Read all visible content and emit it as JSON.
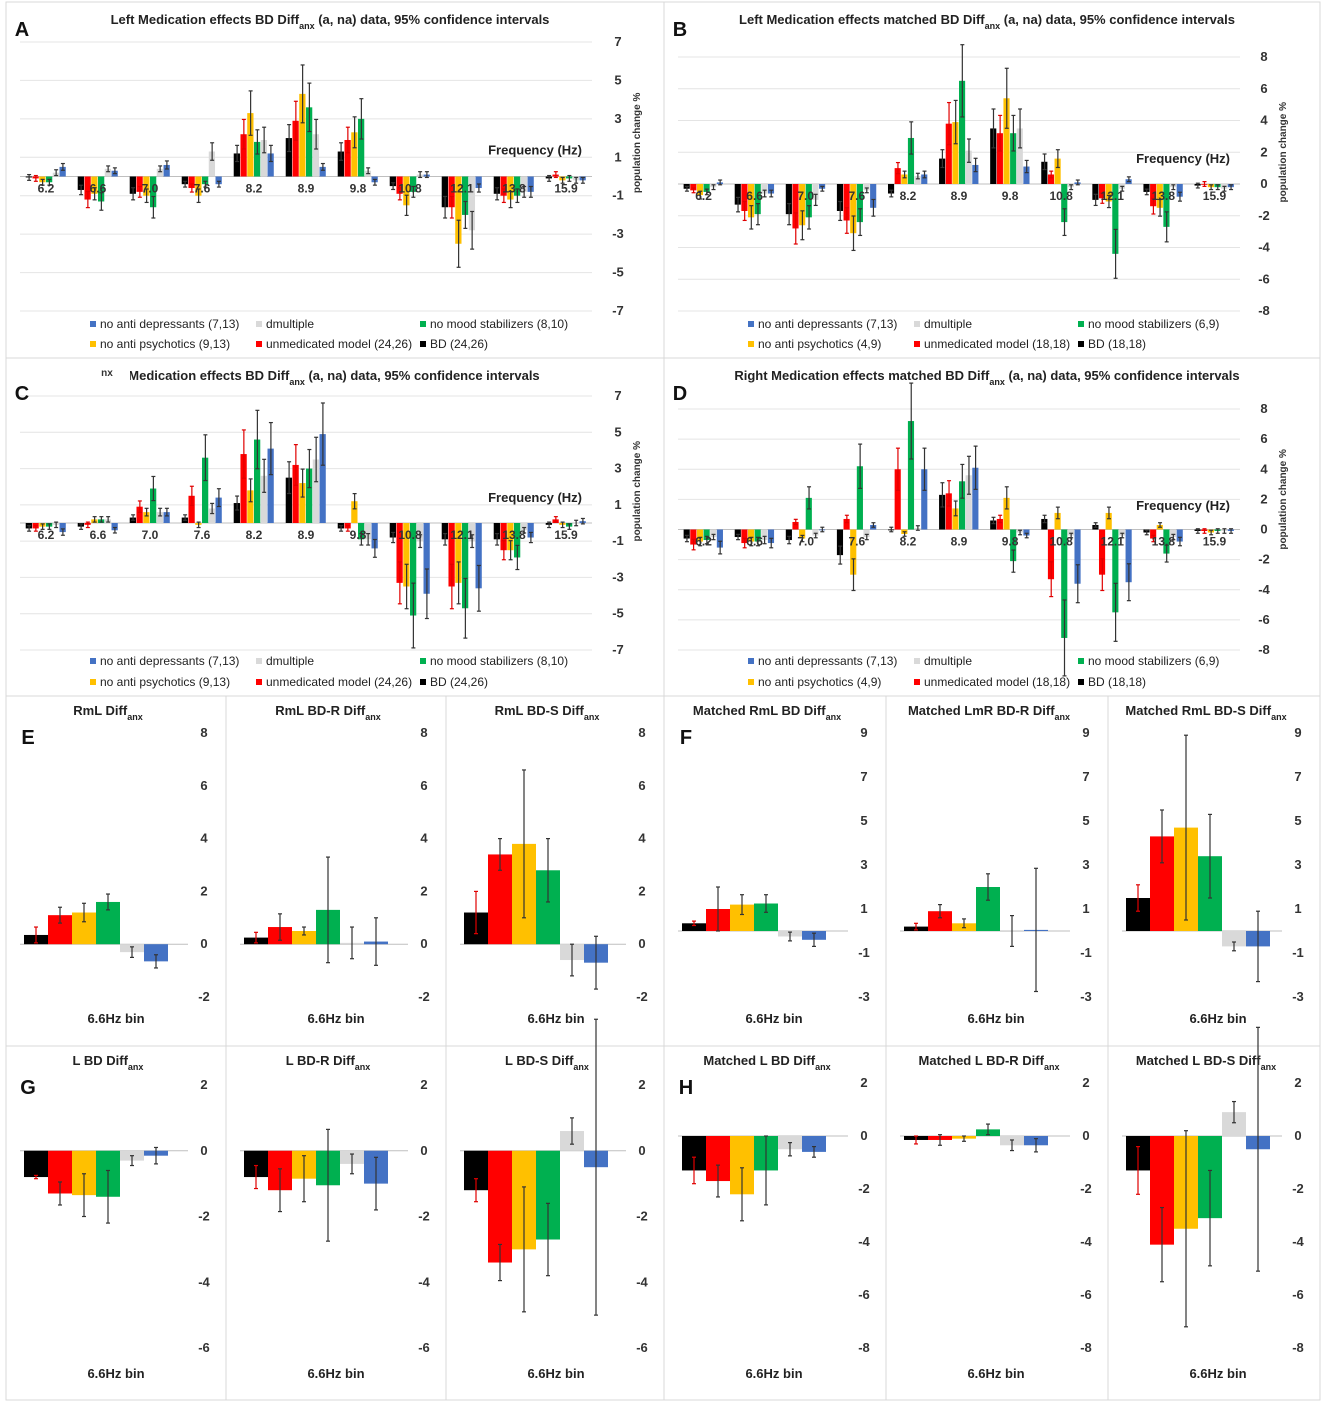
{
  "colors": {
    "BD": "#000000",
    "unmedicated": "#ff0000",
    "no_antipsychotics": "#ffc000",
    "no_mood_stabilizers": "#00b050",
    "dmultiple": "#d9d9d9",
    "no_antidepressants": "#4472c4"
  },
  "chart_data": [
    {
      "panel": "A",
      "type": "bar",
      "title": "Left Medication effects BD Diff",
      "title_sub": "anx",
      "title_rest": " (a, na) data, 95% confidence intervals",
      "xlabel": "Frequency (Hz)",
      "ylabel": "population change %",
      "ylim": [
        -7,
        7
      ],
      "yticks": [
        7,
        5,
        3,
        1,
        -1,
        -3,
        -5,
        -7
      ],
      "categories": [
        "6.2",
        "6.6",
        "7.0",
        "7.6",
        "8.2",
        "8.9",
        "9.8",
        "10.8",
        "12.1",
        "13.8",
        "15.9"
      ],
      "series": [
        {
          "name": "BD (24,26)",
          "color": "#000000",
          "values": [
            -0.05,
            -0.7,
            -0.9,
            -0.4,
            1.2,
            2.0,
            1.3,
            -0.5,
            -1.6,
            -0.9,
            -0.1
          ]
        },
        {
          "name": "unmedicated model (24,26)",
          "color": "#ff0000",
          "values": [
            -0.1,
            -1.2,
            -0.8,
            -0.6,
            2.2,
            2.9,
            1.9,
            -0.9,
            -1.6,
            -1.0,
            0.1
          ]
        },
        {
          "name": "no anti psychotics (9,13)",
          "color": "#ffc000",
          "values": [
            -0.3,
            -0.9,
            -1.0,
            -1.0,
            3.3,
            4.3,
            2.3,
            -1.5,
            -3.5,
            -1.2,
            -0.2
          ]
        },
        {
          "name": "no mood stabilizers (8,10)",
          "color": "#00b050",
          "values": [
            -0.3,
            -1.3,
            -1.6,
            -0.4,
            1.8,
            3.6,
            3.0,
            -0.8,
            -2.0,
            -1.0,
            -0.1
          ]
        },
        {
          "name": "dmultiple",
          "color": "#d9d9d9",
          "values": [
            0.2,
            0.4,
            0.4,
            1.3,
            1.9,
            2.2,
            0.3,
            0.1,
            -2.8,
            -0.8,
            -0.2
          ]
        },
        {
          "name": "no anti depressants (7,13)",
          "color": "#4472c4",
          "values": [
            0.5,
            0.3,
            0.6,
            -0.4,
            1.2,
            0.5,
            -0.3,
            0.1,
            -0.6,
            -0.8,
            -0.2
          ]
        }
      ],
      "legend": [
        "no anti depressants (7,13)",
        "dmultiple",
        "no mood stabilizers (8,10)",
        "no anti psychotics (9,13)",
        "unmedicated model (24,26)",
        "BD (24,26)"
      ]
    },
    {
      "panel": "B",
      "type": "bar",
      "title": "Left Medication effects matched BD Diff",
      "title_sub": "anx",
      "title_rest": " (a, na) data, 95% confidence intervals",
      "xlabel": "Frequency (Hz)",
      "ylabel": "population change %",
      "ylim": [
        -8,
        8
      ],
      "yticks": [
        8,
        6,
        4,
        2,
        0,
        -2,
        -4,
        -6,
        -8
      ],
      "categories": [
        "6.2",
        "6.6",
        "7.0",
        "7.6",
        "8.2",
        "8.9",
        "9.8",
        "10.8",
        "12.1",
        "13.8",
        "15.9"
      ],
      "series": [
        {
          "name": "BD (18,18)",
          "color": "#000000",
          "values": [
            -0.3,
            -1.3,
            -1.9,
            -1.7,
            -0.6,
            1.6,
            3.5,
            1.4,
            -1.0,
            -0.5,
            -0.1
          ]
        },
        {
          "name": "unmedicated model (18,18)",
          "color": "#ff0000",
          "values": [
            -0.4,
            -1.7,
            -2.8,
            -2.3,
            1.0,
            3.8,
            3.2,
            0.6,
            -0.9,
            -1.4,
            0.0
          ]
        },
        {
          "name": "no anti psychotics (4,9)",
          "color": "#ffc000",
          "values": [
            -0.7,
            -2.1,
            -2.6,
            -3.1,
            0.6,
            3.9,
            5.4,
            1.6,
            -1.1,
            -1.5,
            -0.2
          ]
        },
        {
          "name": "no mood stabilizers (6,9)",
          "color": "#00b050",
          "values": [
            -0.5,
            -1.9,
            -2.1,
            -2.4,
            2.9,
            6.5,
            3.2,
            -2.4,
            -4.4,
            -2.7,
            -0.2
          ]
        },
        {
          "name": "dmultiple",
          "color": "#d9d9d9",
          "values": [
            -0.2,
            -0.6,
            -1.0,
            -0.4,
            0.5,
            2.1,
            3.5,
            -0.2,
            -0.3,
            -0.2,
            -0.3
          ]
        },
        {
          "name": "no anti depressants (7,13)",
          "color": "#4472c4",
          "values": [
            0.1,
            -0.6,
            -0.3,
            -1.5,
            0.6,
            1.2,
            1.1,
            0.1,
            0.3,
            -0.8,
            -0.2
          ]
        }
      ],
      "legend": [
        "no anti depressants (7,13)",
        "dmultiple",
        "no mood stabilizers (6,9)",
        "no anti psychotics (4,9)",
        "unmedicated model (18,18)",
        "BD (18,18)"
      ]
    },
    {
      "panel": "C",
      "type": "bar",
      "title": "t Medication effects BD Diff",
      "title_sub": "anx",
      "title_rest": " (a, na) data, 95% confidence intervals",
      "title_overlay": "nx",
      "xlabel": "Frequency (Hz)",
      "ylabel": "population change %",
      "ylim": [
        -7,
        7
      ],
      "yticks": [
        7,
        5,
        3,
        1,
        -1,
        -3,
        -5,
        -7
      ],
      "categories": [
        "6.2",
        "6.6",
        "7.0",
        "7.6",
        "8.2",
        "8.9",
        "9.8",
        "10.8",
        "12.1",
        "13.8",
        "15.9"
      ],
      "series": [
        {
          "name": "BD (24,26)",
          "color": "#000000",
          "values": [
            -0.3,
            -0.2,
            0.3,
            0.3,
            1.1,
            2.5,
            -0.3,
            -0.8,
            -0.9,
            -0.9,
            -0.1
          ]
        },
        {
          "name": "unmedicated model (24,26)",
          "color": "#ff0000",
          "values": [
            -0.3,
            -0.1,
            0.9,
            1.5,
            3.8,
            3.2,
            -0.3,
            -3.3,
            -3.5,
            -1.5,
            0.2
          ]
        },
        {
          "name": "no anti psychotics (9,13)",
          "color": "#ffc000",
          "values": [
            -0.2,
            0.2,
            0.6,
            -0.1,
            1.8,
            2.2,
            1.2,
            -3.5,
            -3.3,
            -1.5,
            -0.1
          ]
        },
        {
          "name": "no mood stabilizers (8,10)",
          "color": "#00b050",
          "values": [
            -0.2,
            0.2,
            1.9,
            3.6,
            4.6,
            3.0,
            -0.9,
            -5.1,
            -4.7,
            -1.9,
            -0.2
          ]
        },
        {
          "name": "dmultiple",
          "color": "#d9d9d9",
          "values": [
            -0.1,
            0.2,
            0.6,
            0.8,
            2.6,
            3.5,
            -0.9,
            -1.0,
            -1.0,
            -0.4,
            0.0
          ]
        },
        {
          "name": "no anti depressants (7,13)",
          "color": "#4472c4",
          "values": [
            -0.5,
            -0.4,
            0.6,
            1.4,
            4.1,
            4.9,
            -1.4,
            -3.9,
            -3.6,
            -0.8,
            0.1
          ]
        }
      ],
      "legend": [
        "no anti depressants (7,13)",
        "dmultiple",
        "no mood stabilizers (8,10)",
        "no anti psychotics (9,13)",
        "unmedicated model (24,26)",
        "BD (24,26)"
      ]
    },
    {
      "panel": "D",
      "type": "bar",
      "title": "Right Medication effects matched BD Diff",
      "title_sub": "anx",
      "title_rest": " (a, na) data, 95% confidence intervals",
      "xlabel": "Frequency (Hz)",
      "ylabel": "population change %",
      "ylim": [
        -8,
        8
      ],
      "yticks": [
        8,
        6,
        4,
        2,
        0,
        -2,
        -4,
        -6,
        -8
      ],
      "categories": [
        "6.2",
        "6.6",
        "7.0",
        "7.6",
        "8.2",
        "8.9",
        "9.8",
        "10.8",
        "12.1",
        "13.8",
        "15.9"
      ],
      "series": [
        {
          "name": "BD (18,18)",
          "color": "#000000",
          "values": [
            -0.6,
            -0.5,
            -0.7,
            -1.7,
            0.0,
            2.3,
            0.6,
            0.7,
            0.3,
            -0.2,
            -0.1
          ]
        },
        {
          "name": "unmedicated model (18,18)",
          "color": "#ff0000",
          "values": [
            -1.0,
            -0.9,
            0.5,
            0.7,
            4.0,
            2.4,
            0.7,
            -3.3,
            -3.0,
            -0.6,
            -0.1
          ]
        },
        {
          "name": "no anti psychotics (4,9)",
          "color": "#ffc000",
          "values": [
            -0.8,
            -0.8,
            -0.6,
            -3.0,
            -0.3,
            1.4,
            2.1,
            1.1,
            1.1,
            0.3,
            -0.2
          ]
        },
        {
          "name": "no mood stabilizers (6,9)",
          "color": "#00b050",
          "values": [
            -0.7,
            -0.8,
            2.1,
            4.2,
            7.2,
            3.2,
            -2.1,
            -7.2,
            -5.5,
            -1.6,
            -0.1
          ]
        },
        {
          "name": "dmultiple",
          "color": "#d9d9d9",
          "values": [
            -0.5,
            -0.7,
            -0.4,
            -0.5,
            0.1,
            3.6,
            -0.2,
            -0.4,
            -0.4,
            -0.5,
            -0.1
          ]
        },
        {
          "name": "no anti depressants (7,13)",
          "color": "#4472c4",
          "values": [
            -1.2,
            -0.9,
            0.0,
            0.3,
            4.0,
            4.1,
            -0.4,
            -3.6,
            -3.5,
            -0.8,
            -0.1
          ]
        }
      ],
      "legend": [
        "no anti depressants (7,13)",
        "dmultiple",
        "no mood stabilizers (6,9)",
        "no anti psychotics (4,9)",
        "unmedicated model (18,18)",
        "BD (18,18)"
      ]
    },
    {
      "panel": "E",
      "type": "bar",
      "title": "RmL Diff",
      "title_sub": "anx",
      "xlabel": "6.6Hz bin",
      "ylim": [
        -2,
        8
      ],
      "yticks": [
        8,
        6,
        4,
        2,
        0,
        -2
      ],
      "values": [
        0.35,
        1.1,
        1.2,
        1.6,
        -0.3,
        -0.65
      ],
      "err": [
        0.3,
        0.3,
        0.35,
        0.3,
        0.2,
        0.25
      ]
    },
    {
      "panel": "E2",
      "type": "bar",
      "title": "RmL BD-R Diff",
      "title_sub": "anx",
      "xlabel": "6.6Hz bin",
      "ylim": [
        -2,
        8
      ],
      "yticks": [
        8,
        6,
        4,
        2,
        0,
        -2
      ],
      "values": [
        0.25,
        0.65,
        0.5,
        1.3,
        0.05,
        0.1
      ],
      "err": [
        0.2,
        0.5,
        0.15,
        2.0,
        0.6,
        0.9
      ]
    },
    {
      "panel": "E3",
      "type": "bar",
      "title": "RmL BD-S Diff",
      "title_sub": "anx",
      "xlabel": "6.6Hz bin",
      "ylim": [
        -2,
        8
      ],
      "yticks": [
        8,
        6,
        4,
        2,
        0,
        -2
      ],
      "values": [
        1.2,
        3.4,
        3.8,
        2.8,
        -0.6,
        -0.7
      ],
      "err": [
        0.8,
        0.6,
        2.8,
        1.2,
        0.6,
        1.0
      ]
    },
    {
      "panel": "F",
      "type": "bar",
      "title": "Matched RmL BD Diff",
      "title_sub": "anx",
      "xlabel": "6.6Hz bin",
      "ylim": [
        -3,
        9
      ],
      "yticks": [
        9,
        7,
        5,
        3,
        1,
        -1,
        -3
      ],
      "values": [
        0.35,
        1.0,
        1.2,
        1.25,
        -0.25,
        -0.4
      ],
      "err": [
        0.1,
        1.0,
        0.45,
        0.4,
        0.2,
        0.3
      ]
    },
    {
      "panel": "F2",
      "type": "bar",
      "title": "Matched LmR BD-R Diff",
      "title_sub": "anx",
      "xlabel": "6.6Hz bin",
      "ylim": [
        -3,
        9
      ],
      "yticks": [
        9,
        7,
        5,
        3,
        1,
        -1,
        -3
      ],
      "values": [
        0.2,
        0.9,
        0.35,
        2.0,
        0.0,
        0.05
      ],
      "err": [
        0.15,
        0.3,
        0.2,
        0.6,
        0.7,
        2.8
      ]
    },
    {
      "panel": "F3",
      "type": "bar",
      "title": "Matched RmL BD-S Diff",
      "title_sub": "anx",
      "xlabel": "6.6Hz bin",
      "ylim": [
        -3,
        9
      ],
      "yticks": [
        9,
        7,
        5,
        3,
        1,
        -1,
        -3
      ],
      "values": [
        1.5,
        4.3,
        4.7,
        3.4,
        -0.7,
        -0.7
      ],
      "err": [
        0.6,
        1.2,
        4.2,
        1.9,
        0.2,
        1.6
      ]
    },
    {
      "panel": "G",
      "type": "bar",
      "title": "L BD Diff",
      "title_sub": "anx",
      "xlabel": "6.6Hz bin",
      "ylim": [
        -6,
        2
      ],
      "yticks": [
        2,
        0,
        -2,
        -4,
        -6
      ],
      "values": [
        -0.8,
        -1.3,
        -1.35,
        -1.4,
        -0.3,
        -0.15
      ],
      "err": [
        0.05,
        0.35,
        0.65,
        0.8,
        0.15,
        0.25
      ]
    },
    {
      "panel": "G2",
      "type": "bar",
      "title": "L BD-R Diff",
      "title_sub": "anx",
      "xlabel": "6.6Hz bin",
      "ylim": [
        -6,
        2
      ],
      "yticks": [
        2,
        0,
        -2,
        -4,
        -6
      ],
      "values": [
        -0.8,
        -1.2,
        -0.85,
        -1.05,
        -0.4,
        -1.0
      ],
      "err": [
        0.35,
        0.65,
        0.7,
        1.7,
        0.3,
        0.8
      ]
    },
    {
      "panel": "G3",
      "type": "bar",
      "title": "L BD-S Diff",
      "title_sub": "anx",
      "xlabel": "6.6Hz bin",
      "ylim": [
        -6,
        2
      ],
      "yticks": [
        2,
        0,
        -2,
        -4,
        -6
      ],
      "values": [
        -1.2,
        -3.4,
        -3.0,
        -2.7,
        0.6,
        -0.5
      ],
      "err": [
        0.35,
        0.55,
        1.9,
        1.1,
        0.4,
        4.5
      ]
    },
    {
      "panel": "H",
      "type": "bar",
      "title": "Matched L BD Diff",
      "title_sub": "anx",
      "xlabel": "6.6Hz bin",
      "ylim": [
        -8,
        2
      ],
      "yticks": [
        2,
        0,
        -2,
        -4,
        -6,
        -8
      ],
      "values": [
        -1.3,
        -1.7,
        -2.2,
        -1.3,
        -0.5,
        -0.6
      ],
      "err": [
        0.5,
        0.6,
        1.0,
        1.3,
        0.25,
        0.2
      ]
    },
    {
      "panel": "H2",
      "type": "bar",
      "title": "Matched L BD-R Diff",
      "title_sub": "anx",
      "xlabel": "6.6Hz bin",
      "ylim": [
        -8,
        2
      ],
      "yticks": [
        2,
        0,
        -2,
        -4,
        -6,
        -8
      ],
      "values": [
        -0.15,
        -0.15,
        -0.1,
        0.25,
        -0.35,
        -0.35
      ],
      "err": [
        0.15,
        0.2,
        0.1,
        0.2,
        0.2,
        0.25
      ]
    },
    {
      "panel": "H3",
      "type": "bar",
      "title": "Matched L BD-S Diff",
      "title_sub": "anx",
      "xlabel": "6.6Hz bin",
      "ylim": [
        -8,
        2
      ],
      "yticks": [
        2,
        0,
        -2,
        -4,
        -6,
        -8
      ],
      "values": [
        -1.3,
        -4.1,
        -3.5,
        -3.1,
        0.9,
        -0.5
      ],
      "err": [
        0.9,
        1.4,
        3.7,
        1.8,
        0.4,
        4.6
      ]
    }
  ]
}
